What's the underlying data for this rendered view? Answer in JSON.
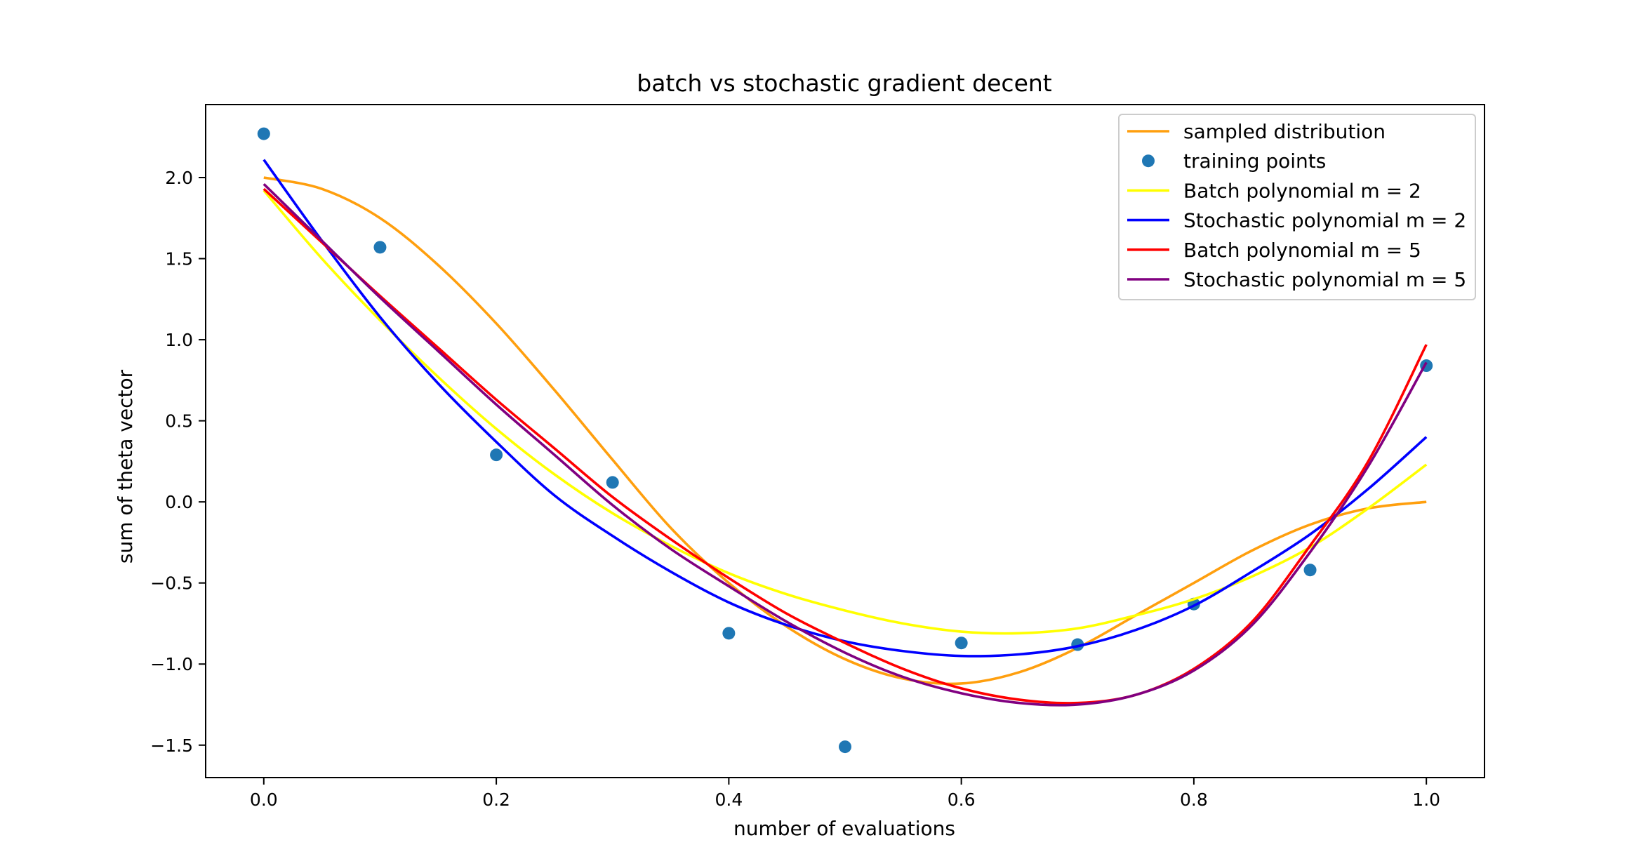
{
  "chart_data": {
    "type": "line",
    "title": "batch vs stochastic gradient decent",
    "xlabel": "number of evaluations",
    "ylabel": "sum of theta vector",
    "xlim": [
      -0.05,
      1.05
    ],
    "ylim": [
      -1.7,
      2.45
    ],
    "xticks": [
      0.0,
      0.2,
      0.4,
      0.6,
      0.8,
      1.0
    ],
    "xtick_labels": [
      "0.0",
      "0.2",
      "0.4",
      "0.6",
      "0.8",
      "1.0"
    ],
    "yticks": [
      -1.5,
      -1.0,
      -0.5,
      0.0,
      0.5,
      1.0,
      1.5,
      2.0
    ],
    "ytick_labels": [
      "−1.5",
      "−1.0",
      "−0.5",
      "0.0",
      "0.5",
      "1.0",
      "1.5",
      "2.0"
    ],
    "grid": false,
    "legend_position": "top-right",
    "series": [
      {
        "name": "sampled distribution",
        "kind": "line",
        "color": "#ff9f0e",
        "x": [
          0.0,
          0.05,
          0.1,
          0.15,
          0.2,
          0.25,
          0.3,
          0.35,
          0.4,
          0.45,
          0.5,
          0.55,
          0.6,
          0.65,
          0.7,
          0.75,
          0.8,
          0.85,
          0.9,
          0.95,
          1.0
        ],
        "y": [
          2.0,
          1.93,
          1.75,
          1.46,
          1.1,
          0.69,
          0.26,
          -0.16,
          -0.5,
          -0.77,
          -0.97,
          -1.09,
          -1.12,
          -1.05,
          -0.9,
          -0.7,
          -0.5,
          -0.3,
          -0.14,
          -0.04,
          0.0
        ]
      },
      {
        "name": "training points",
        "kind": "scatter",
        "color": "#1f77b4",
        "x": [
          0.0,
          0.1,
          0.2,
          0.3,
          0.4,
          0.5,
          0.6,
          0.7,
          0.8,
          0.9,
          1.0
        ],
        "y": [
          2.27,
          1.57,
          0.29,
          0.12,
          -0.81,
          -1.51,
          -0.87,
          -0.88,
          -0.63,
          -0.42,
          0.84
        ]
      },
      {
        "name": "Batch polynomial m = 2",
        "kind": "line",
        "color": "#ffff00",
        "x": [
          0.0,
          0.05,
          0.1,
          0.15,
          0.2,
          0.25,
          0.3,
          0.35,
          0.4,
          0.45,
          0.5,
          0.55,
          0.6,
          0.65,
          0.7,
          0.75,
          0.8,
          0.85,
          0.9,
          0.95,
          1.0
        ],
        "y": [
          1.92,
          1.5,
          1.12,
          0.77,
          0.45,
          0.17,
          -0.07,
          -0.27,
          -0.44,
          -0.57,
          -0.67,
          -0.75,
          -0.8,
          -0.81,
          -0.78,
          -0.7,
          -0.6,
          -0.46,
          -0.28,
          -0.04,
          0.23
        ]
      },
      {
        "name": "Stochastic polynomial m = 2",
        "kind": "line",
        "color": "#0000ff",
        "x": [
          0.0,
          0.05,
          0.1,
          0.15,
          0.2,
          0.25,
          0.3,
          0.35,
          0.4,
          0.45,
          0.5,
          0.55,
          0.6,
          0.65,
          0.7,
          0.75,
          0.8,
          0.85,
          0.9,
          0.95,
          1.0
        ],
        "y": [
          2.11,
          1.61,
          1.14,
          0.73,
          0.37,
          0.04,
          -0.21,
          -0.43,
          -0.62,
          -0.76,
          -0.86,
          -0.92,
          -0.95,
          -0.94,
          -0.89,
          -0.79,
          -0.64,
          -0.43,
          -0.2,
          0.08,
          0.4
        ]
      },
      {
        "name": "Batch polynomial m = 5",
        "kind": "line",
        "color": "#ff0000",
        "x": [
          0.0,
          0.05,
          0.1,
          0.15,
          0.2,
          0.25,
          0.3,
          0.35,
          0.4,
          0.45,
          0.5,
          0.55,
          0.6,
          0.65,
          0.7,
          0.75,
          0.8,
          0.85,
          0.9,
          0.95,
          1.0
        ],
        "y": [
          1.93,
          1.6,
          1.27,
          0.95,
          0.63,
          0.33,
          0.03,
          -0.23,
          -0.47,
          -0.69,
          -0.87,
          -1.03,
          -1.15,
          -1.22,
          -1.24,
          -1.19,
          -1.03,
          -0.74,
          -0.27,
          0.25,
          0.97
        ]
      },
      {
        "name": "Stochastic polynomial m = 5",
        "kind": "line",
        "color": "#800080",
        "x": [
          0.0,
          0.05,
          0.1,
          0.15,
          0.2,
          0.25,
          0.3,
          0.35,
          0.4,
          0.45,
          0.5,
          0.55,
          0.6,
          0.65,
          0.7,
          0.75,
          0.8,
          0.85,
          0.9,
          0.95,
          1.0
        ],
        "y": [
          1.96,
          1.61,
          1.26,
          0.93,
          0.6,
          0.29,
          -0.02,
          -0.29,
          -0.52,
          -0.74,
          -0.93,
          -1.08,
          -1.18,
          -1.24,
          -1.25,
          -1.19,
          -1.04,
          -0.76,
          -0.31,
          0.22,
          0.86
        ]
      }
    ]
  }
}
